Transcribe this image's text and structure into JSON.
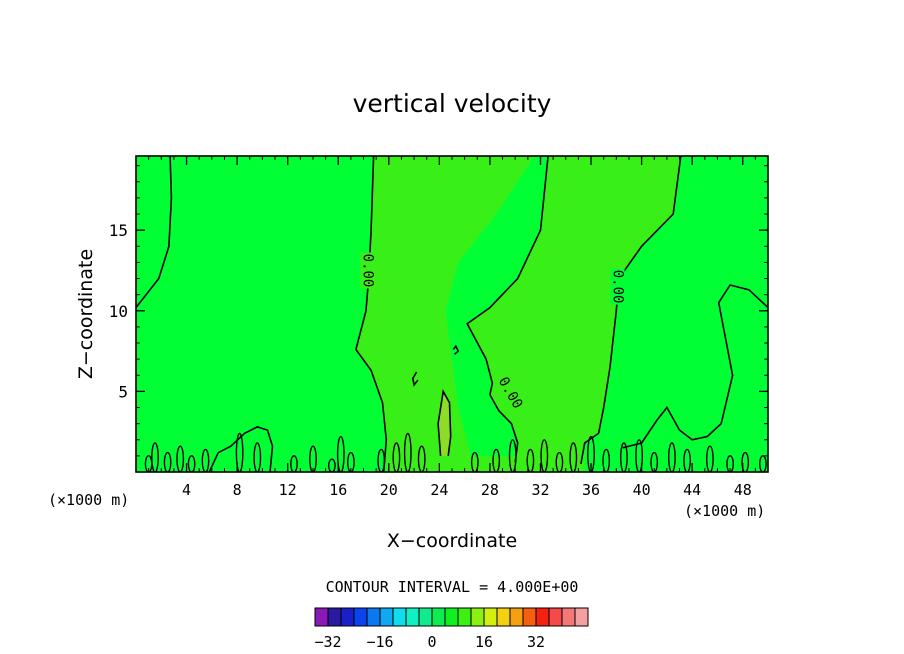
{
  "chart_data": {
    "type": "heatmap",
    "title": "vertical velocity",
    "xlabel": "X−coordinate",
    "ylabel": "Z−coordinate",
    "x_unit_left": "(×1000 m)",
    "x_unit_right": "(×1000 m)",
    "xlim": [
      0,
      50
    ],
    "ylim": [
      0,
      19.6
    ],
    "x_ticks": [
      4,
      8,
      12,
      16,
      20,
      24,
      28,
      32,
      36,
      40,
      44,
      48
    ],
    "y_ticks": [
      5,
      10,
      15
    ],
    "contour_label": "0.00",
    "contour_interval_text": "CONTOUR INTERVAL = 4.000E+00",
    "colorbar": {
      "min": -36,
      "max": 36,
      "interval": 4,
      "tick_values": [
        -32,
        -16,
        0,
        16,
        32
      ],
      "tick_labels": [
        "−32",
        "−16",
        "0",
        "16",
        "32"
      ],
      "colors": [
        "#8a1ab8",
        "#2a1aa0",
        "#1a20c8",
        "#0a44ee",
        "#0a78f0",
        "#10a8f0",
        "#10dcec",
        "#10f0c0",
        "#10ec8c",
        "#10ec50",
        "#10f020",
        "#3cf010",
        "#8cf010",
        "#d2f010",
        "#f5d010",
        "#f5a010",
        "#f56010",
        "#f52010",
        "#f54a4a",
        "#f57878",
        "#f5a0a0"
      ]
    },
    "field_colors": {
      "background": "#00ff33",
      "updraft": "#38f018",
      "core": "#8cdc28"
    },
    "regions": [
      {
        "level": "updraft",
        "points": [
          [
            18.8,
            19.6
          ],
          [
            18.6,
            15
          ],
          [
            18.4,
            12
          ],
          [
            18.2,
            10
          ],
          [
            17.4,
            7.6
          ],
          [
            18.6,
            6.3
          ],
          [
            19.5,
            4.3
          ],
          [
            19.8,
            2
          ],
          [
            19.8,
            0
          ],
          [
            35.5,
            0
          ],
          [
            35.5,
            1.8
          ],
          [
            36.6,
            2.4
          ],
          [
            37,
            4
          ],
          [
            37.5,
            6.5
          ],
          [
            38,
            10
          ],
          [
            38.2,
            12
          ],
          [
            40,
            14
          ],
          [
            42.5,
            16
          ],
          [
            43.1,
            19.6
          ],
          [
            32.6,
            19.6
          ],
          [
            32,
            15
          ],
          [
            30.2,
            12
          ],
          [
            28,
            10.2
          ],
          [
            26.2,
            9.2
          ],
          [
            27.7,
            7
          ],
          [
            28.2,
            5.5
          ],
          [
            28,
            4.8
          ],
          [
            28.7,
            3.8
          ],
          [
            29.7,
            3
          ],
          [
            30.2,
            1.8
          ],
          [
            30,
            1
          ],
          [
            26.5,
            1
          ],
          [
            25.5,
            4
          ],
          [
            25,
            7
          ],
          [
            24.5,
            10
          ],
          [
            25.5,
            13
          ],
          [
            28.5,
            16
          ],
          [
            31.5,
            19.6
          ]
        ]
      },
      {
        "level": "core",
        "points": [
          [
            24.1,
            1
          ],
          [
            23.9,
            3
          ],
          [
            24.3,
            5
          ],
          [
            24.8,
            4.3
          ],
          [
            24.9,
            2.2
          ],
          [
            24.7,
            1
          ]
        ]
      }
    ],
    "contours": [
      {
        "points": [
          [
            2.7,
            19.6
          ],
          [
            2.8,
            17
          ],
          [
            2.6,
            14
          ],
          [
            1.8,
            12
          ],
          [
            0,
            10.2
          ]
        ]
      },
      {
        "points": [
          [
            18.8,
            19.6
          ],
          [
            18.6,
            15
          ],
          [
            18.4,
            12
          ],
          [
            18.2,
            10
          ],
          [
            17.4,
            7.6
          ],
          [
            18.6,
            6.3
          ],
          [
            19.5,
            4.3
          ],
          [
            19.8,
            2
          ],
          [
            19.6,
            0
          ]
        ]
      },
      {
        "points": [
          [
            32.6,
            19.6
          ],
          [
            32,
            15
          ],
          [
            30.2,
            12
          ],
          [
            28,
            10.2
          ],
          [
            26.2,
            9.2
          ],
          [
            27.7,
            7
          ],
          [
            28.2,
            5.5
          ],
          [
            28,
            4.8
          ],
          [
            28.7,
            3.8
          ],
          [
            29.7,
            3
          ],
          [
            30.2,
            1.8
          ],
          [
            30,
            0.6
          ]
        ]
      },
      {
        "points": [
          [
            43.1,
            19.6
          ],
          [
            42.5,
            16
          ],
          [
            40,
            14
          ],
          [
            38.2,
            12
          ],
          [
            38,
            10
          ],
          [
            37.5,
            6.5
          ],
          [
            37,
            4
          ],
          [
            36.6,
            2.4
          ],
          [
            35.5,
            1.8
          ],
          [
            35.2,
            0.5
          ]
        ]
      },
      {
        "points": [
          [
            50,
            10.2
          ],
          [
            48.5,
            11.3
          ],
          [
            47,
            11.6
          ],
          [
            46.1,
            10.5
          ],
          [
            47.2,
            6
          ],
          [
            46.3,
            3
          ],
          [
            45.2,
            2.2
          ],
          [
            44,
            2
          ],
          [
            43,
            2.6
          ],
          [
            42,
            4
          ],
          [
            41.2,
            3.2
          ],
          [
            40,
            1.8
          ],
          [
            38.5,
            1.5
          ]
        ]
      },
      {
        "points": [
          [
            5.8,
            0
          ],
          [
            6.5,
            1.2
          ],
          [
            7.5,
            1.6
          ],
          [
            8.6,
            2.4
          ],
          [
            9.6,
            2.8
          ],
          [
            10.4,
            2.6
          ],
          [
            10.8,
            1.6
          ],
          [
            10.6,
            0
          ]
        ]
      },
      {
        "points": [
          [
            24.1,
            1
          ],
          [
            23.9,
            3
          ],
          [
            24.3,
            5
          ],
          [
            24.8,
            4.3
          ],
          [
            24.9,
            2.2
          ],
          [
            24.7,
            1
          ]
        ]
      },
      {
        "points": [
          [
            22.2,
            6.2
          ],
          [
            21.9,
            5.8
          ],
          [
            22,
            5.4
          ],
          [
            22.3,
            5.7
          ]
        ]
      },
      {
        "points": [
          [
            25.1,
            7.6
          ],
          [
            25.3,
            7.8
          ],
          [
            25.5,
            7.5
          ],
          [
            25.2,
            7.3
          ]
        ]
      }
    ],
    "small_contours": [
      [
        1,
        0.5
      ],
      [
        1.5,
        0.9
      ],
      [
        2.5,
        0.6
      ],
      [
        3.5,
        0.8
      ],
      [
        4.4,
        0.5
      ],
      [
        5.5,
        0.7
      ],
      [
        8.2,
        1.2
      ],
      [
        9.6,
        0.9
      ],
      [
        12.5,
        0.5
      ],
      [
        14,
        0.8
      ],
      [
        15.5,
        0.4
      ],
      [
        16.2,
        1.1
      ],
      [
        17,
        0.6
      ],
      [
        19.4,
        0.7
      ],
      [
        20.6,
        0.9
      ],
      [
        21.5,
        1.2
      ],
      [
        22.6,
        0.8
      ],
      [
        26.8,
        0.6
      ],
      [
        28.5,
        0.7
      ],
      [
        29.8,
        1.0
      ],
      [
        31.2,
        0.7
      ],
      [
        32.3,
        1.0
      ],
      [
        33.5,
        0.6
      ],
      [
        34.6,
        0.9
      ],
      [
        36,
        1.1
      ],
      [
        37.2,
        0.7
      ],
      [
        38.6,
        0.9
      ],
      [
        39.8,
        1.0
      ],
      [
        41,
        0.6
      ],
      [
        42.4,
        0.9
      ],
      [
        43.6,
        0.7
      ],
      [
        45.4,
        0.8
      ],
      [
        47,
        0.5
      ],
      [
        48.2,
        0.6
      ],
      [
        49.6,
        0.5
      ]
    ],
    "contour_label_positions": [
      [
        18.3,
        12.5
      ],
      [
        38.1,
        11.5
      ],
      [
        29.6,
        4.9
      ]
    ]
  }
}
